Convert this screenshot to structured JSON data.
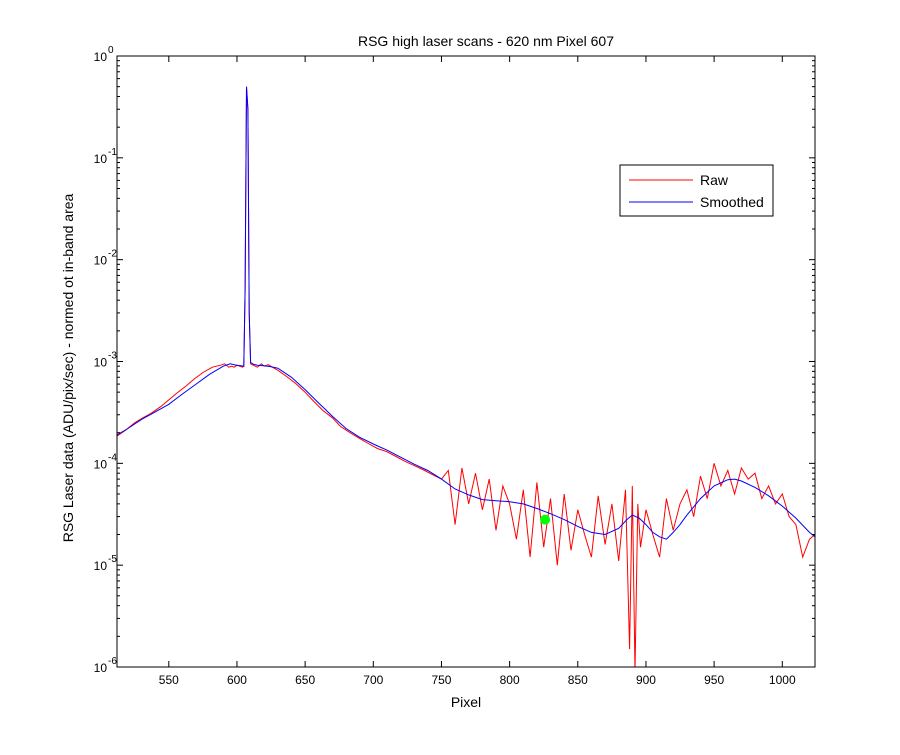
{
  "chart_data": {
    "type": "line",
    "title": "RSG high laser scans  - 620 nm    Pixel 607",
    "xlabel": "Pixel",
    "ylabel": "RSG Laser data (ADU/pix/sec) - normed ot in-band area",
    "xlim": [
      512,
      1024
    ],
    "ylim": [
      1e-06,
      1
    ],
    "yscale": "log",
    "xticks": [
      550,
      600,
      650,
      700,
      750,
      800,
      850,
      900,
      950,
      1000
    ],
    "xtick_labels": [
      "550",
      "600",
      "650",
      "700",
      "750",
      "800",
      "850",
      "900",
      "950",
      "1000"
    ],
    "yticks": [
      {
        "base": "10",
        "exp": "-6"
      },
      {
        "base": "10",
        "exp": "-5"
      },
      {
        "base": "10",
        "exp": "-4"
      },
      {
        "base": "10",
        "exp": "-3"
      },
      {
        "base": "10",
        "exp": "-2"
      },
      {
        "base": "10",
        "exp": "-1"
      },
      {
        "base": "10",
        "exp": "0"
      }
    ],
    "legend_position": "upper-right",
    "grid": false,
    "series": [
      {
        "name": "Raw",
        "color": "#ff0000",
        "x": [
          512,
          518,
          525,
          531,
          537,
          544,
          550,
          556,
          563,
          569,
          575,
          582,
          588,
          591,
          594,
          596,
          598,
          600,
          602,
          604,
          605,
          606,
          607,
          608,
          609,
          610,
          612,
          615,
          618,
          620,
          623,
          626,
          630,
          636,
          643,
          650,
          656,
          663,
          670,
          676,
          683,
          690,
          697,
          703,
          710,
          716,
          723,
          730,
          737,
          743,
          750,
          755,
          760,
          765,
          770,
          775,
          780,
          785,
          790,
          795,
          800,
          805,
          810,
          815,
          820,
          825,
          830,
          835,
          840,
          845,
          850,
          855,
          860,
          865,
          870,
          875,
          880,
          885,
          888,
          890,
          892,
          894,
          896,
          900,
          905,
          910,
          915,
          920,
          925,
          930,
          935,
          940,
          945,
          950,
          955,
          960,
          965,
          970,
          975,
          980,
          985,
          990,
          995,
          1000,
          1005,
          1010,
          1015,
          1020,
          1024
        ],
        "y": [
          0.000185,
          0.00021,
          0.00025,
          0.00028,
          0.00031,
          0.00036,
          0.00042,
          0.00049,
          0.00058,
          0.00068,
          0.00078,
          0.00088,
          0.00092,
          0.00095,
          0.00088,
          0.0009,
          0.00088,
          0.00092,
          0.0009,
          0.00088,
          0.0009,
          0.005,
          0.5,
          0.3,
          0.003,
          0.00095,
          0.00092,
          0.00088,
          0.00095,
          0.0009,
          0.00093,
          0.00088,
          0.00082,
          0.00072,
          0.00061,
          0.0005,
          0.00041,
          0.00033,
          0.00028,
          0.00023,
          0.0002,
          0.000175,
          0.000155,
          0.00014,
          0.00013,
          0.000118,
          0.000105,
          9.5e-05,
          8.6e-05,
          7.8e-05,
          7e-05,
          8.5e-05,
          2.5e-05,
          9e-05,
          4e-05,
          8e-05,
          3.5e-05,
          7e-05,
          2.2e-05,
          6e-05,
          4e-05,
          1.8e-05,
          5.5e-05,
          1.2e-05,
          6.5e-05,
          1.5e-05,
          4.5e-05,
          1e-05,
          5e-05,
          1.4e-05,
          3.5e-05,
          2e-05,
          1.2e-05,
          4.8e-05,
          1.6e-05,
          4e-05,
          1.1e-05,
          5.5e-05,
          1.5e-06,
          6e-05,
          9e-07,
          4e-05,
          1.5e-05,
          3.5e-05,
          2e-05,
          1.2e-05,
          4.5e-05,
          2.2e-05,
          4e-05,
          5.5e-05,
          3e-05,
          7.5e-05,
          4.5e-05,
          0.0001,
          6e-05,
          8.5e-05,
          5e-05,
          9e-05,
          7e-05,
          8e-05,
          4.5e-05,
          6e-05,
          4e-05,
          5e-05,
          3e-05,
          2.5e-05,
          1.2e-05,
          1.8e-05,
          2e-05
        ]
      },
      {
        "name": "Smoothed",
        "color": "#0000ff",
        "x": [
          512,
          520,
          530,
          540,
          550,
          560,
          570,
          580,
          590,
          595,
          598,
          600,
          603,
          605,
          606,
          607,
          608,
          609,
          610,
          612,
          615,
          620,
          625,
          630,
          640,
          650,
          660,
          670,
          680,
          690,
          700,
          710,
          720,
          730,
          740,
          750,
          760,
          770,
          780,
          790,
          800,
          810,
          820,
          830,
          840,
          850,
          860,
          870,
          880,
          886,
          890,
          895,
          900,
          905,
          910,
          915,
          920,
          925,
          930,
          940,
          950,
          960,
          965,
          970,
          980,
          990,
          1000,
          1010,
          1020,
          1024
        ],
        "y": [
          0.00019,
          0.00022,
          0.00027,
          0.00032,
          0.00038,
          0.00048,
          0.0006,
          0.00075,
          0.0009,
          0.00095,
          0.00093,
          0.00092,
          0.00091,
          0.0009,
          0.005,
          0.5,
          0.3,
          0.003,
          0.00098,
          0.00094,
          0.00092,
          0.00091,
          0.00089,
          0.00086,
          0.0007,
          0.00053,
          0.00039,
          0.00029,
          0.00022,
          0.00018,
          0.000155,
          0.000135,
          0.000115,
          9.8e-05,
          8.5e-05,
          7e-05,
          5.6e-05,
          4.9e-05,
          4.4e-05,
          4.3e-05,
          4.2e-05,
          4e-05,
          3.6e-05,
          3.2e-05,
          2.8e-05,
          2.4e-05,
          2.1e-05,
          2e-05,
          2.3e-05,
          2.8e-05,
          3.1e-05,
          2.9e-05,
          2.5e-05,
          2.1e-05,
          1.9e-05,
          1.8e-05,
          2.1e-05,
          2.5e-05,
          3.1e-05,
          4.5e-05,
          6e-05,
          6.9e-05,
          7e-05,
          6.7e-05,
          5.8e-05,
          4.8e-05,
          3.8e-05,
          2.9e-05,
          2.1e-05,
          1.9e-05
        ]
      }
    ],
    "marker": {
      "x": 826,
      "y": 2.8e-05,
      "color": "#00ff00"
    }
  }
}
